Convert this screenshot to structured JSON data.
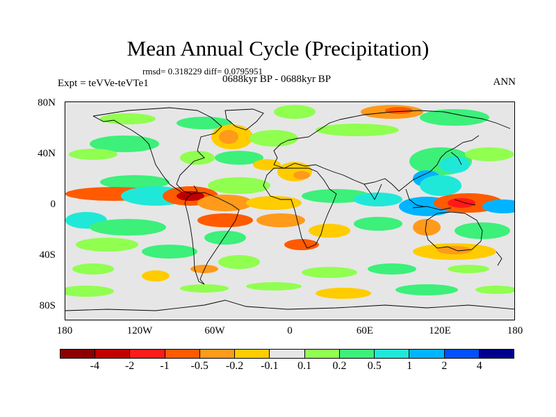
{
  "title": "Mean Annual Cycle (Precipitation)",
  "stats": "rmsd= 0.318229 diff= 0.0795951",
  "period": "0688kyr BP - 0688kyr BP",
  "experiment": "Expt = teVVe-teVTe1",
  "season": "ANN",
  "y_ticks": [
    "80N",
    "40N",
    "0",
    "40S",
    "80S"
  ],
  "x_ticks": [
    "180",
    "120W",
    "60W",
    "0",
    "60E",
    "120E",
    "180"
  ],
  "colorbar": {
    "colors": [
      "#8b0000",
      "#c00000",
      "#ff1a1a",
      "#ff5a00",
      "#ff9a1a",
      "#ffcc00",
      "#e6e6e6",
      "#90ff50",
      "#3cf07a",
      "#20e8d8",
      "#00b4ff",
      "#0050ff",
      "#00008b"
    ],
    "labels": [
      "-4",
      "-2",
      "-1",
      "-0.5",
      "-0.2",
      "-0.1",
      "0.1",
      "0.2",
      "0.5",
      "1",
      "2",
      "4"
    ]
  },
  "map": {
    "background_color": "#e6e6e6",
    "coastline_color": "#000000"
  }
}
